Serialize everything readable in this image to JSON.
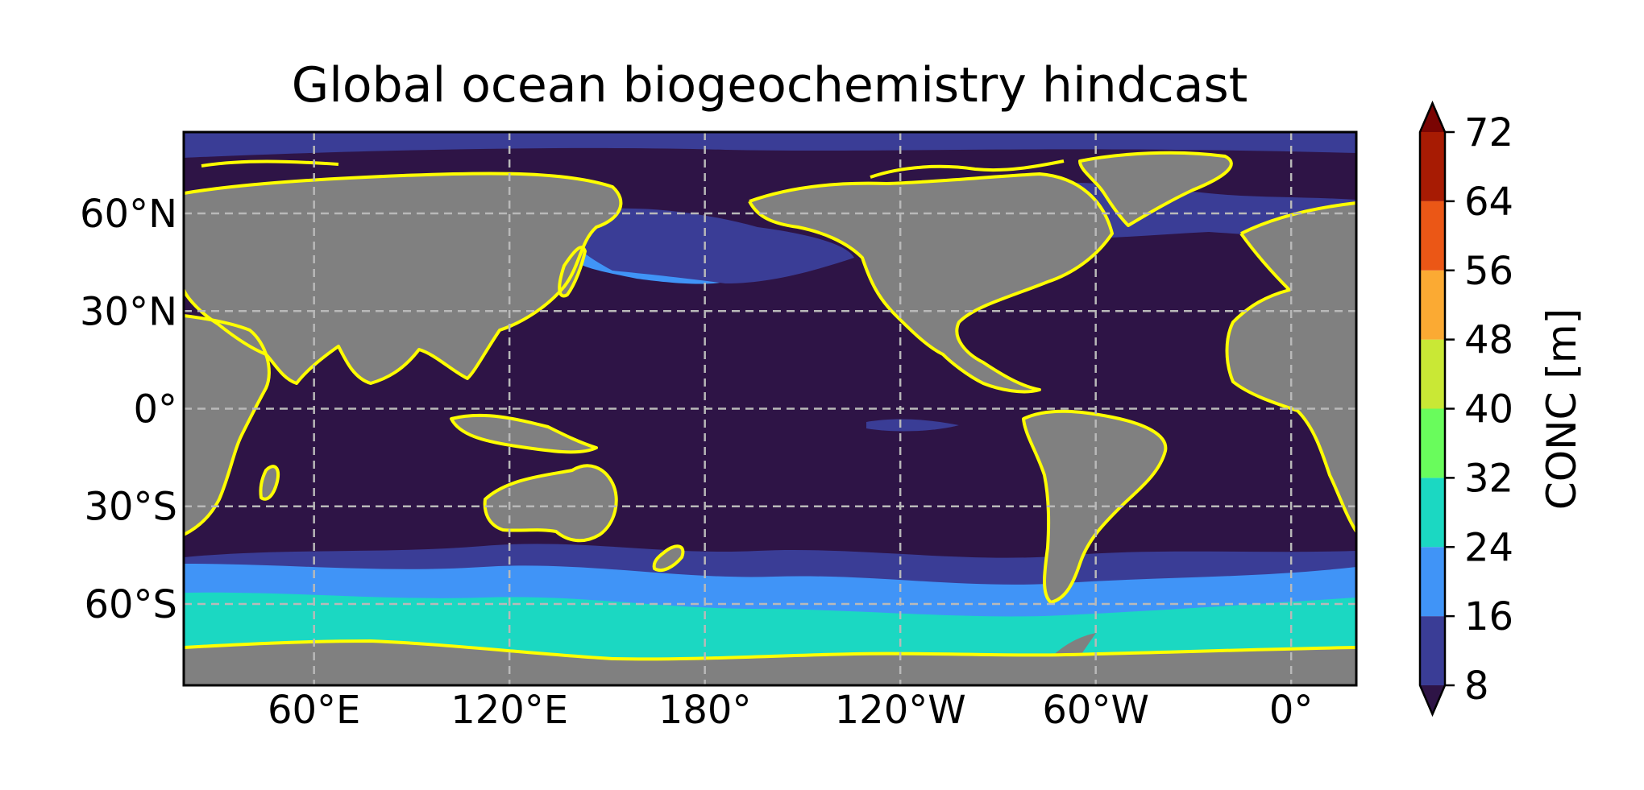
{
  "chart_data": {
    "type": "contour-map",
    "title": "Global ocean biogeochemistry hindcast",
    "projection": "PlateCarree, central longitude 180°",
    "lon_range": [
      20,
      380
    ],
    "lat_range": [
      -85,
      85
    ],
    "gridlines": true,
    "x_ticks": [
      {
        "lon": 60,
        "label": "60°E"
      },
      {
        "lon": 120,
        "label": "120°E"
      },
      {
        "lon": 180,
        "label": "180°"
      },
      {
        "lon": 240,
        "label": "120°W"
      },
      {
        "lon": 300,
        "label": "60°W"
      },
      {
        "lon": 360,
        "label": "0°"
      }
    ],
    "y_ticks": [
      {
        "lat": 60,
        "label": "60°N"
      },
      {
        "lat": 30,
        "label": "30°N"
      },
      {
        "lat": 0,
        "label": "0°"
      },
      {
        "lat": -30,
        "label": "30°S"
      },
      {
        "lat": -60,
        "label": "60°S"
      }
    ],
    "colorbar": {
      "label": "CONC [m]",
      "extend": "both",
      "levels": [
        8,
        16,
        24,
        32,
        40,
        48,
        56,
        64,
        72
      ],
      "colors": [
        "#3a3d96",
        "#4094f7",
        "#1bd8c2",
        "#69fc5c",
        "#c9e835",
        "#fbaa33",
        "#eb5716",
        "#a71b03"
      ],
      "under_color": "#2e1446",
      "over_color": "#7a0403",
      "placement": "right"
    },
    "colors": {
      "ocean_background": "#2e1446",
      "land": "#808080",
      "coastline": "#ffff00",
      "missing": "#ffffff"
    },
    "bands": [
      {
        "level_min": 16,
        "level_max": 24,
        "region": "Southern Ocean 45°S–55°S"
      },
      {
        "level_min": 24,
        "level_max": 32,
        "region": "Southern Ocean 55°S–70°S"
      },
      {
        "level_min": 16,
        "level_max": 24,
        "region": "NW Pacific (Sea of Okhotsk / Kuroshio extension)"
      },
      {
        "level_min": 8,
        "level_max": 16,
        "region": "North Pacific and North Atlantic subpolar, Arctic"
      },
      {
        "level_min": 8,
        "level_max": 16,
        "region": "Eastern equatorial Pacific patch"
      }
    ]
  }
}
